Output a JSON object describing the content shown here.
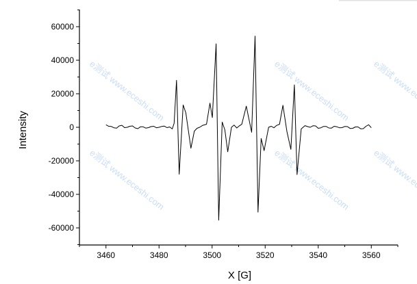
{
  "chart_data": {
    "type": "line",
    "title": "",
    "xlabel": "X [G]",
    "ylabel": "Intensity",
    "xlim": [
      3450,
      3570
    ],
    "ylim": [
      -70000,
      70000
    ],
    "xticks": [
      3460,
      3480,
      3500,
      3520,
      3540,
      3560
    ],
    "yticks": [
      -60000,
      -40000,
      -20000,
      0,
      20000,
      40000,
      60000
    ],
    "grid": false,
    "line_color": "#000000",
    "series": [
      {
        "x": [
          3460,
          3461,
          3462,
          3463,
          3464,
          3465,
          3466,
          3467,
          3468,
          3469,
          3470,
          3471,
          3472,
          3473,
          3474,
          3475,
          3476,
          3477,
          3478,
          3479,
          3480,
          3481,
          3482,
          3483,
          3484,
          3485,
          3485.7,
          3486.6,
          3487.6,
          3489.1,
          3490.1,
          3492,
          3493.3,
          3494.3,
          3495.3,
          3496.5,
          3497.9,
          3499.2,
          3500.1,
          3501.5,
          3502.5,
          3503.8,
          3504.8,
          3505.9,
          3507.3,
          3508.3,
          3509.3,
          3510.3,
          3511.2,
          3512.9,
          3514.9,
          3516.2,
          3517.3,
          3518.5,
          3519.6,
          3521.3,
          3522.3,
          3523.3,
          3524.3,
          3525.4,
          3526.7,
          3528.2,
          3529.7,
          3531,
          3532,
          3533.6,
          3535,
          3536,
          3537,
          3538,
          3539,
          3540,
          3541,
          3542,
          3543,
          3544,
          3545,
          3546,
          3547,
          3548,
          3549,
          3550,
          3551,
          3552,
          3553,
          3554,
          3555,
          3556,
          3557,
          3558,
          3559,
          3560
        ],
        "y": [
          1500,
          600,
          500,
          -300,
          -500,
          800,
          1200,
          -200,
          0,
          600,
          800,
          -400,
          -800,
          300,
          300,
          -500,
          -200,
          400,
          600,
          -300,
          0,
          500,
          700,
          -200,
          200,
          -1000,
          2400,
          28000,
          -28000,
          13300,
          8600,
          -12500,
          -2300,
          -600,
          0,
          1200,
          1800,
          14400,
          5800,
          49800,
          -55400,
          3100,
          -1600,
          -14600,
          0,
          1300,
          -400,
          900,
          1800,
          12600,
          -3000,
          54400,
          -50600,
          -6700,
          -13900,
          0,
          600,
          -300,
          1100,
          1800,
          13100,
          -2500,
          -13200,
          25300,
          -28200,
          -1000,
          1000,
          400,
          0,
          900,
          800,
          -600,
          -300,
          500,
          500,
          -400,
          -500,
          600,
          300,
          -300,
          -200,
          500,
          400,
          -700,
          -600,
          200,
          200,
          -900,
          -800,
          600,
          1500,
          -300
        ]
      }
    ]
  },
  "watermark": "e测试 www.eceshi.com"
}
